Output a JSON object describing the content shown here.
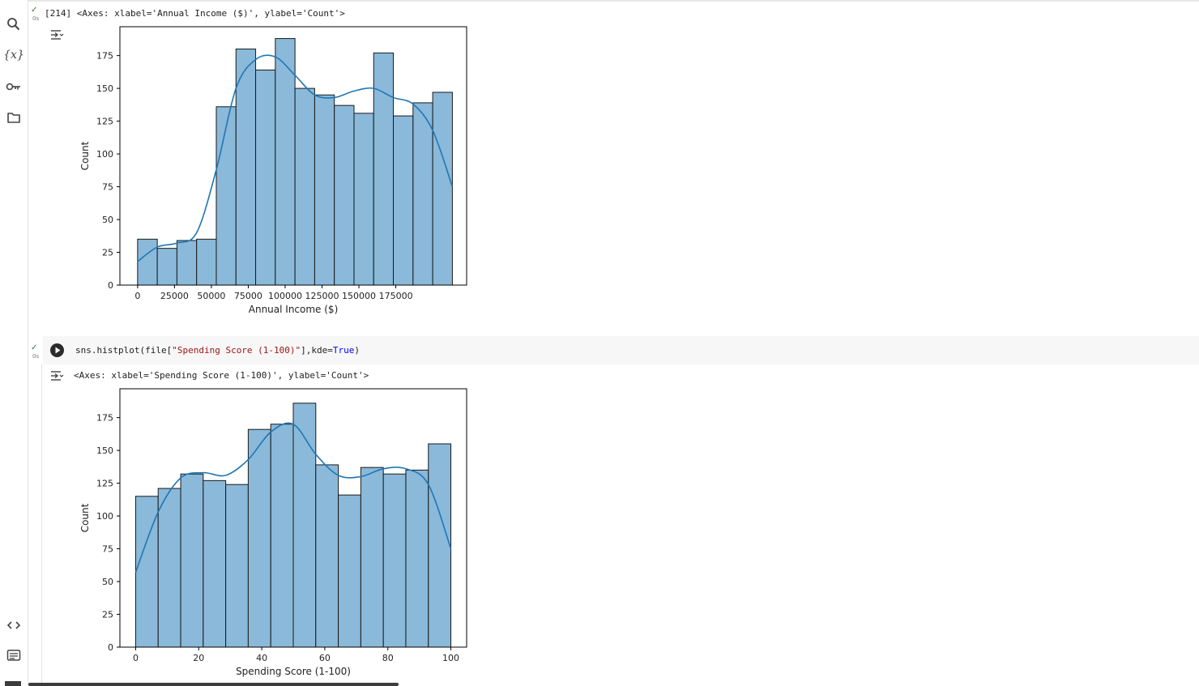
{
  "sidebar": {
    "items": [
      {
        "icon": "search-icon"
      },
      {
        "icon": "variables-icon",
        "label": "{x}"
      },
      {
        "icon": "key-icon"
      },
      {
        "icon": "folder-icon"
      },
      {
        "icon": "code-icon"
      },
      {
        "icon": "terminal-icon"
      }
    ]
  },
  "cell1": {
    "exec_time": "0s",
    "output_text": "[214] <Axes: xlabel='Annual Income ($)', ylabel='Count'>"
  },
  "cell2": {
    "exec_time": "0s",
    "code": {
      "prefix": "sns.histplot(file[",
      "string": "\"Spending Score (1-100)\"",
      "mid": "],kde=",
      "keyword": "True",
      "suffix": ")"
    },
    "output_text": "<Axes: xlabel='Spending Score (1-100)', ylabel='Count'>"
  },
  "colors": {
    "bar_fill": "#8ab9da",
    "kde_line": "#1f77b4",
    "check": "#2e7d32",
    "string": "#a31515",
    "keyword": "#0000ff"
  },
  "chart_data": [
    {
      "type": "bar",
      "xlabel": "Annual Income ($)",
      "ylabel": "Count",
      "bin_edges": [
        0,
        13333,
        26667,
        40000,
        53333,
        66667,
        80000,
        93333,
        106667,
        120000,
        133333,
        146667,
        160000,
        173333,
        186667,
        200000,
        213333
      ],
      "values": [
        35,
        28,
        34,
        35,
        136,
        180,
        164,
        188,
        150,
        145,
        137,
        131,
        177,
        129,
        139,
        147
      ],
      "xlim": [
        -12000,
        223000
      ],
      "ylim": [
        0,
        197
      ],
      "xticks": [
        0,
        25000,
        50000,
        75000,
        100000,
        125000,
        150000,
        175000
      ],
      "yticks": [
        0,
        25,
        50,
        75,
        100,
        125,
        150,
        175
      ],
      "kde": {
        "x": [
          0,
          13333,
          26667,
          40000,
          53333,
          66667,
          80000,
          93333,
          106667,
          120000,
          133333,
          146667,
          160000,
          173333,
          186667,
          200000,
          213333
        ],
        "y": [
          18,
          29,
          32,
          40,
          88,
          150,
          172,
          174,
          160,
          145,
          143,
          148,
          150,
          143,
          138,
          118,
          75
        ]
      }
    },
    {
      "type": "bar",
      "xlabel": "Spending Score (1-100)",
      "ylabel": "Count",
      "bin_edges": [
        0,
        7.14,
        14.29,
        21.43,
        28.57,
        35.71,
        42.86,
        50,
        57.14,
        64.29,
        71.43,
        78.57,
        85.71,
        92.86,
        100
      ],
      "values": [
        115,
        121,
        132,
        127,
        124,
        166,
        170,
        186,
        139,
        116,
        137,
        132,
        135,
        155
      ],
      "xlim": [
        -5,
        105
      ],
      "ylim": [
        0,
        197
      ],
      "xticks": [
        0,
        20,
        40,
        60,
        80,
        100
      ],
      "yticks": [
        0,
        25,
        50,
        75,
        100,
        125,
        150,
        175
      ],
      "kde": {
        "x": [
          0,
          7.14,
          14.29,
          21.43,
          28.57,
          35.71,
          42.86,
          50,
          57.14,
          64.29,
          71.43,
          78.57,
          85.71,
          92.86,
          100
        ],
        "y": [
          57,
          103,
          129,
          133,
          131,
          143,
          164,
          170,
          147,
          131,
          130,
          136,
          136,
          124,
          75
        ]
      }
    }
  ]
}
